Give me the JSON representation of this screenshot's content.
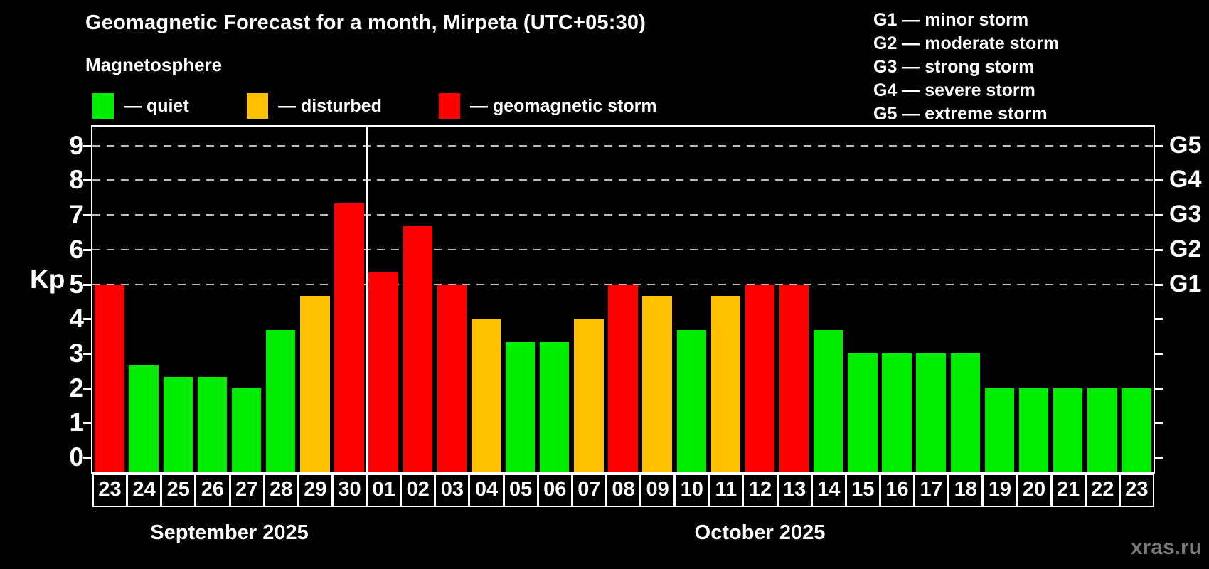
{
  "header": {
    "title": "Geomagnetic Forecast for a month, Mirpeta (UTC+05:30)",
    "subtitle": "Magnetosphere"
  },
  "gscale_legend": {
    "items": [
      "G1 — minor storm",
      "G2 — moderate storm",
      "G3 — strong storm",
      "G4 — severe storm",
      "G5 — extreme storm"
    ]
  },
  "watermark": "xras.ru",
  "chart_data": {
    "type": "bar",
    "title": "Geomagnetic Forecast for a month, Mirpeta (UTC+05:30)",
    "subtitle": "Magnetosphere",
    "ylabel": "Kp",
    "xlabel": "",
    "ylim": [
      0,
      9
    ],
    "yticks": [
      0,
      1,
      2,
      3,
      4,
      5,
      6,
      7,
      8,
      9
    ],
    "grid": "dashed horizontal lines at Kp 5,6,7,8,9",
    "legend_position": "top-left",
    "background": "#000000",
    "colors": {
      "quiet": "#00ed00",
      "disturbed": "#ffc000",
      "storm": "#ff0000"
    },
    "legend": [
      {
        "status": "quiet",
        "label": "— quiet"
      },
      {
        "status": "disturbed",
        "label": "— disturbed"
      },
      {
        "status": "storm",
        "label": "— geomagnetic storm"
      }
    ],
    "storm_levels": [
      {
        "kp": 5,
        "label": "G1"
      },
      {
        "kp": 6,
        "label": "G2"
      },
      {
        "kp": 7,
        "label": "G3"
      },
      {
        "kp": 8,
        "label": "G4"
      },
      {
        "kp": 9,
        "label": "G5"
      }
    ],
    "months": [
      {
        "label": "September 2025",
        "days": 8
      },
      {
        "label": "October 2025",
        "days": 23
      }
    ],
    "bars": [
      {
        "date": "23",
        "month": "September 2025",
        "kp": 5,
        "status": "storm"
      },
      {
        "date": "24",
        "month": "September 2025",
        "kp": 2.67,
        "status": "quiet"
      },
      {
        "date": "25",
        "month": "September 2025",
        "kp": 2.33,
        "status": "quiet"
      },
      {
        "date": "26",
        "month": "September 2025",
        "kp": 2.33,
        "status": "quiet"
      },
      {
        "date": "27",
        "month": "September 2025",
        "kp": 2,
        "status": "quiet"
      },
      {
        "date": "28",
        "month": "September 2025",
        "kp": 3.67,
        "status": "quiet"
      },
      {
        "date": "29",
        "month": "September 2025",
        "kp": 4.67,
        "status": "disturbed"
      },
      {
        "date": "30",
        "month": "September 2025",
        "kp": 7.33,
        "status": "storm"
      },
      {
        "date": "01",
        "month": "October 2025",
        "kp": 5.33,
        "status": "storm"
      },
      {
        "date": "02",
        "month": "October 2025",
        "kp": 6.67,
        "status": "storm"
      },
      {
        "date": "03",
        "month": "October 2025",
        "kp": 5,
        "status": "storm"
      },
      {
        "date": "04",
        "month": "October 2025",
        "kp": 4,
        "status": "disturbed"
      },
      {
        "date": "05",
        "month": "October 2025",
        "kp": 3.33,
        "status": "quiet"
      },
      {
        "date": "06",
        "month": "October 2025",
        "kp": 3.33,
        "status": "quiet"
      },
      {
        "date": "07",
        "month": "October 2025",
        "kp": 4,
        "status": "disturbed"
      },
      {
        "date": "08",
        "month": "October 2025",
        "kp": 5,
        "status": "storm"
      },
      {
        "date": "09",
        "month": "October 2025",
        "kp": 4.67,
        "status": "disturbed"
      },
      {
        "date": "10",
        "month": "October 2025",
        "kp": 3.67,
        "status": "quiet"
      },
      {
        "date": "11",
        "month": "October 2025",
        "kp": 4.67,
        "status": "disturbed"
      },
      {
        "date": "12",
        "month": "October 2025",
        "kp": 5,
        "status": "storm"
      },
      {
        "date": "13",
        "month": "October 2025",
        "kp": 5,
        "status": "storm"
      },
      {
        "date": "14",
        "month": "October 2025",
        "kp": 3.67,
        "status": "quiet"
      },
      {
        "date": "15",
        "month": "October 2025",
        "kp": 3,
        "status": "quiet"
      },
      {
        "date": "16",
        "month": "October 2025",
        "kp": 3,
        "status": "quiet"
      },
      {
        "date": "17",
        "month": "October 2025",
        "kp": 3,
        "status": "quiet"
      },
      {
        "date": "18",
        "month": "October 2025",
        "kp": 3,
        "status": "quiet"
      },
      {
        "date": "19",
        "month": "October 2025",
        "kp": 2,
        "status": "quiet"
      },
      {
        "date": "20",
        "month": "October 2025",
        "kp": 2,
        "status": "quiet"
      },
      {
        "date": "21",
        "month": "October 2025",
        "kp": 2,
        "status": "quiet"
      },
      {
        "date": "22",
        "month": "October 2025",
        "kp": 2,
        "status": "quiet"
      },
      {
        "date": "23",
        "month": "October 2025",
        "kp": 2,
        "status": "quiet"
      }
    ]
  }
}
